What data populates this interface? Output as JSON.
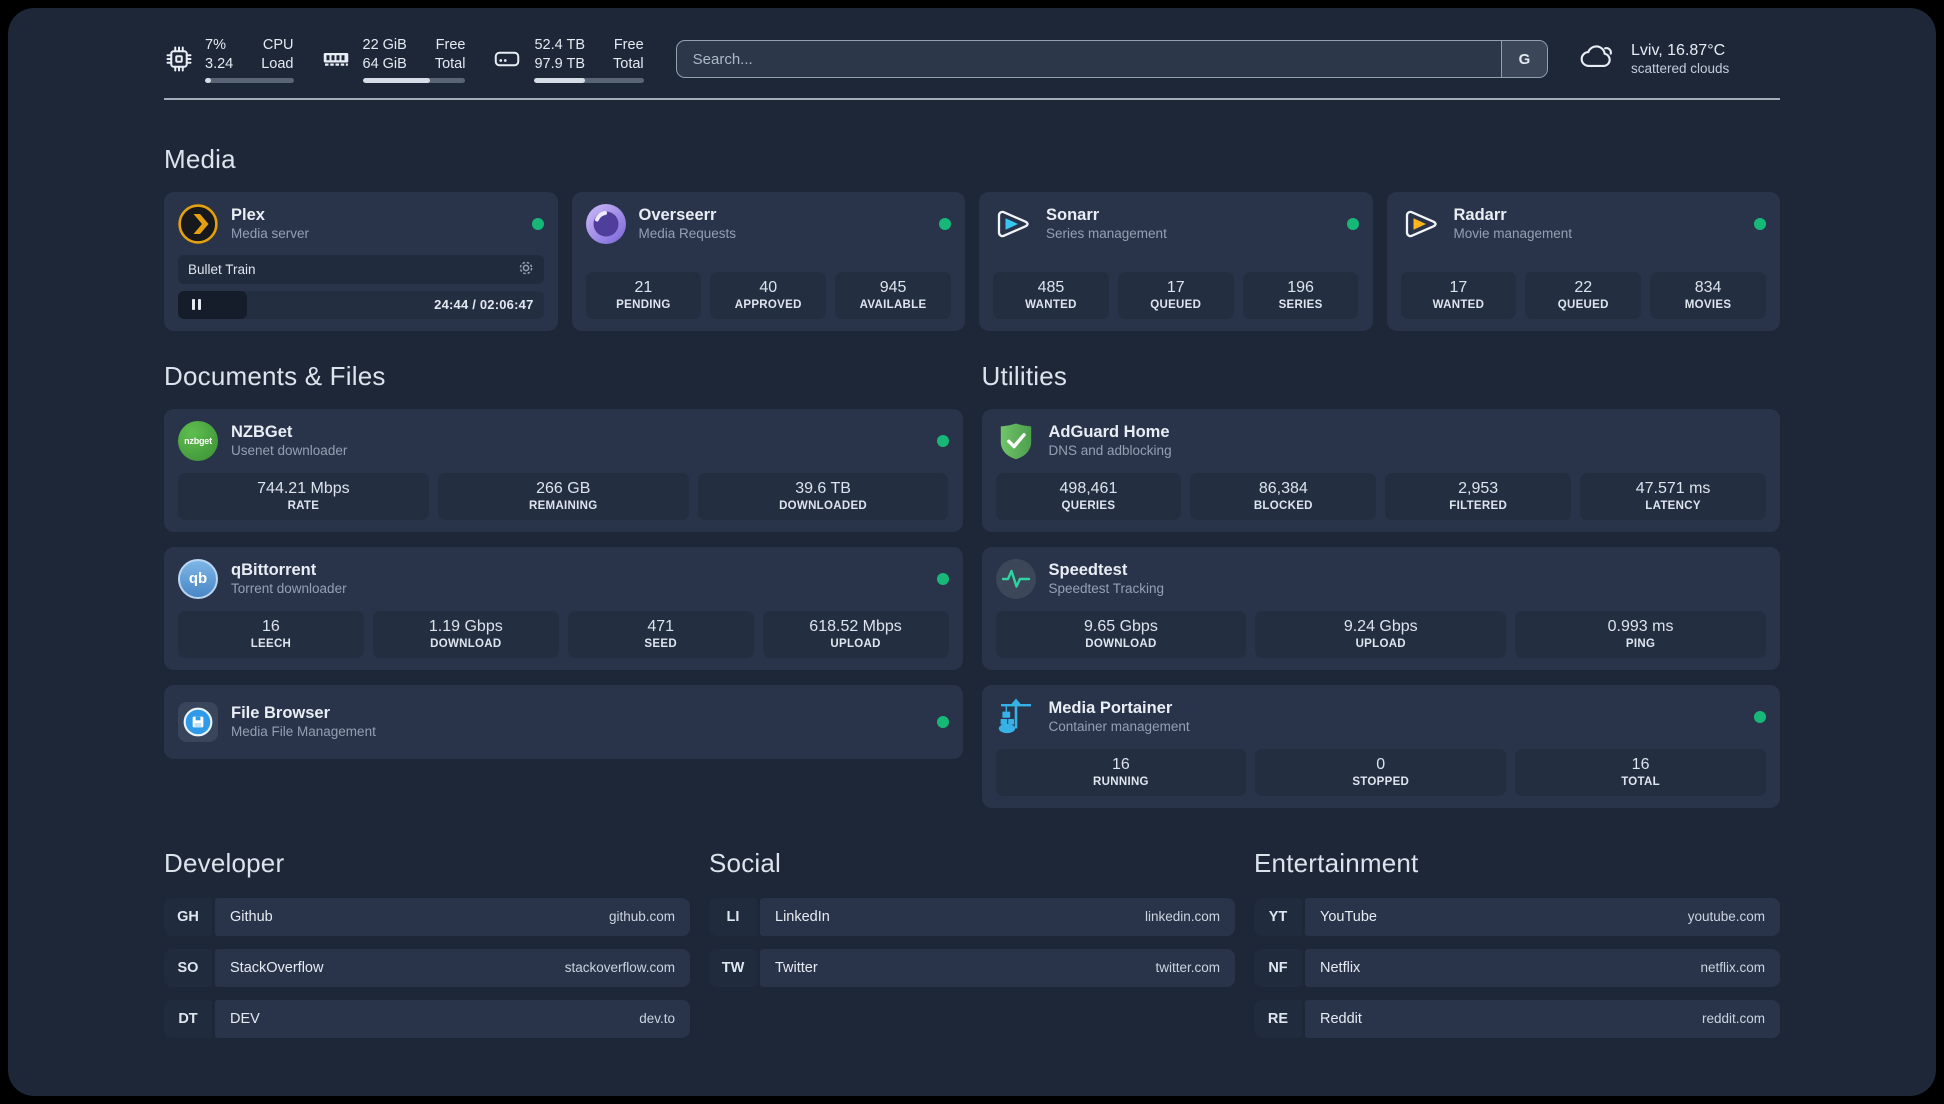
{
  "header": {
    "cpu": {
      "percent": "7%",
      "load": "3.24",
      "label_top": "CPU",
      "label_bottom": "Load",
      "bar_pct": 7
    },
    "memory": {
      "free": "22 GiB",
      "total": "64 GiB",
      "label_top": "Free",
      "label_bottom": "Total",
      "bar_pct": 66
    },
    "disk": {
      "free": "52.4 TB",
      "total": "97.9 TB",
      "label_top": "Free",
      "label_bottom": "Total",
      "bar_pct": 46
    },
    "search": {
      "placeholder": "Search...",
      "engine_button": "G"
    },
    "weather": {
      "location_temp": "Lviv, 16.87°C",
      "condition": "scattered clouds"
    }
  },
  "media": {
    "heading": "Media",
    "plex": {
      "name": "Plex",
      "description": "Media server",
      "status": "online",
      "player": {
        "title": "Bullet Train",
        "time": "24:44 / 02:06:47",
        "progress_pct": 19,
        "state": "paused"
      }
    },
    "overseerr": {
      "name": "Overseerr",
      "description": "Media Requests",
      "status": "online",
      "stats": [
        {
          "value": "21",
          "label": "PENDING"
        },
        {
          "value": "40",
          "label": "APPROVED"
        },
        {
          "value": "945",
          "label": "AVAILABLE"
        }
      ]
    },
    "sonarr": {
      "name": "Sonarr",
      "description": "Series management",
      "status": "online",
      "stats": [
        {
          "value": "485",
          "label": "WANTED"
        },
        {
          "value": "17",
          "label": "QUEUED"
        },
        {
          "value": "196",
          "label": "SERIES"
        }
      ]
    },
    "radarr": {
      "name": "Radarr",
      "description": "Movie management",
      "status": "online",
      "stats": [
        {
          "value": "17",
          "label": "WANTED"
        },
        {
          "value": "22",
          "label": "QUEUED"
        },
        {
          "value": "834",
          "label": "MOVIES"
        }
      ]
    }
  },
  "documents": {
    "heading": "Documents & Files",
    "nzbget": {
      "name": "NZBGet",
      "description": "Usenet downloader",
      "status": "online",
      "icon_text": "nzbget",
      "stats": [
        {
          "value": "744.21 Mbps",
          "label": "RATE"
        },
        {
          "value": "266 GB",
          "label": "REMAINING"
        },
        {
          "value": "39.6 TB",
          "label": "DOWNLOADED"
        }
      ]
    },
    "qbittorrent": {
      "name": "qBittorrent",
      "description": "Torrent downloader",
      "status": "online",
      "icon_text": "qb",
      "stats": [
        {
          "value": "16",
          "label": "LEECH"
        },
        {
          "value": "1.19 Gbps",
          "label": "DOWNLOAD"
        },
        {
          "value": "471",
          "label": "SEED"
        },
        {
          "value": "618.52 Mbps",
          "label": "UPLOAD"
        }
      ]
    },
    "filebrowser": {
      "name": "File Browser",
      "description": "Media File Management",
      "status": "online"
    }
  },
  "utilities": {
    "heading": "Utilities",
    "adguard": {
      "name": "AdGuard Home",
      "description": "DNS and adblocking",
      "stats": [
        {
          "value": "498,461",
          "label": "QUERIES"
        },
        {
          "value": "86,384",
          "label": "BLOCKED"
        },
        {
          "value": "2,953",
          "label": "FILTERED"
        },
        {
          "value": "47.571 ms",
          "label": "LATENCY"
        }
      ]
    },
    "speedtest": {
      "name": "Speedtest",
      "description": "Speedtest Tracking",
      "stats": [
        {
          "value": "9.65 Gbps",
          "label": "DOWNLOAD"
        },
        {
          "value": "9.24 Gbps",
          "label": "UPLOAD"
        },
        {
          "value": "0.993 ms",
          "label": "PING"
        }
      ]
    },
    "portainer": {
      "name": "Media Portainer",
      "description": "Container management",
      "status": "online",
      "stats": [
        {
          "value": "16",
          "label": "RUNNING"
        },
        {
          "value": "0",
          "label": "STOPPED"
        },
        {
          "value": "16",
          "label": "TOTAL"
        }
      ]
    }
  },
  "bookmark_groups": [
    {
      "heading": "Developer",
      "links": [
        {
          "abbr": "GH",
          "name": "Github",
          "domain": "github.com"
        },
        {
          "abbr": "SO",
          "name": "StackOverflow",
          "domain": "stackoverflow.com"
        },
        {
          "abbr": "DT",
          "name": "DEV",
          "domain": "dev.to"
        }
      ]
    },
    {
      "heading": "Social",
      "links": [
        {
          "abbr": "LI",
          "name": "LinkedIn",
          "domain": "linkedin.com"
        },
        {
          "abbr": "TW",
          "name": "Twitter",
          "domain": "twitter.com"
        }
      ]
    },
    {
      "heading": "Entertainment",
      "links": [
        {
          "abbr": "YT",
          "name": "YouTube",
          "domain": "youtube.com"
        },
        {
          "abbr": "NF",
          "name": "Netflix",
          "domain": "netflix.com"
        },
        {
          "abbr": "RE",
          "name": "Reddit",
          "domain": "reddit.com"
        }
      ]
    }
  ],
  "colors": {
    "status_online": "#17b877",
    "plex_gold": "#e5a00d",
    "sonarr_blue": "#38c6f4",
    "radarr_yellow": "#ffb41f",
    "nzbget_green": "#3f9e36",
    "qbittorrent_blue": "#4a86c8",
    "adguard_green": "#5bb258",
    "speedtest_pulse": "#2fd4a0",
    "portainer_blue": "#36b2e6"
  }
}
